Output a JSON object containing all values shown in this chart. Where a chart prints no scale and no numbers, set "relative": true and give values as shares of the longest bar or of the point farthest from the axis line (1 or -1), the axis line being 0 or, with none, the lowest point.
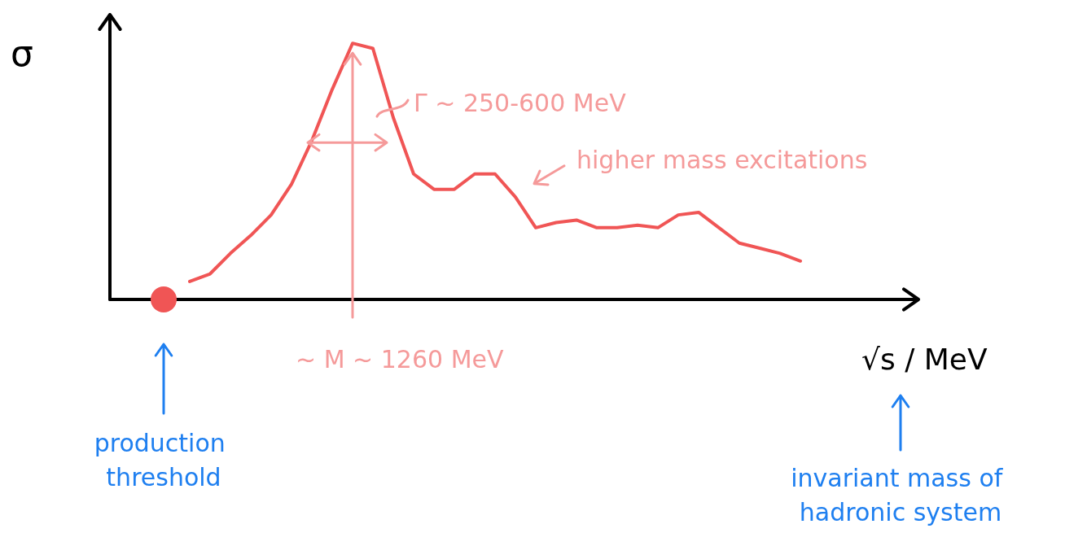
{
  "chart_data": {
    "type": "line",
    "relative": true,
    "ylabel": "σ",
    "xlabel": "√s / MeV",
    "categories": [
      null,
      null,
      null,
      null,
      null,
      null,
      null,
      null,
      null,
      null,
      null,
      null,
      null,
      null,
      null,
      null,
      null,
      null,
      null,
      null,
      null,
      null,
      null,
      null,
      null,
      null,
      null,
      null,
      null,
      null,
      null
    ],
    "series": [
      {
        "color": "#f05555",
        "values": [
          0.07,
          0.1,
          0.18,
          0.25,
          0.33,
          0.45,
          0.62,
          0.82,
          1,
          0.98,
          0.71,
          0.49,
          0.43,
          0.43,
          0.49,
          0.49,
          0.4,
          0.28,
          0.3,
          0.31,
          0.28,
          0.28,
          0.29,
          0.28,
          0.33,
          0.34,
          0.28,
          0.22,
          0.2,
          0.18,
          0.15
        ]
      }
    ],
    "annotations": [
      "Γ ~ 250-600 MeV",
      "~ M ~ 1260 MeV",
      "higher mass excitations",
      "production threshold",
      "invariant mass of hadronic system"
    ],
    "grid": false
  }
}
